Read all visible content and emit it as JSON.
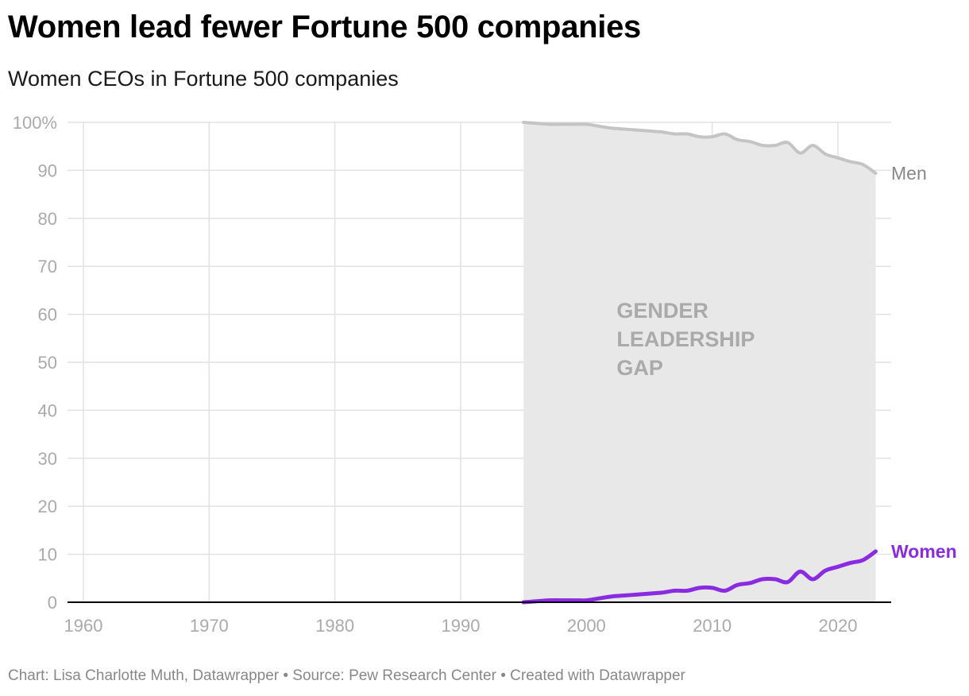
{
  "header": {
    "title": "Women lead fewer Fortune 500 companies",
    "subtitle": "Women CEOs in Fortune 500 companies"
  },
  "footer": {
    "credit": "Chart: Lisa Charlotte Muth, Datawrapper • Source: Pew Research Center • Created with Datawrapper"
  },
  "colors": {
    "women": "#8a2be2",
    "men": "#c4c4c4",
    "gap_fill": "#e8e8e8",
    "grid": "#e2e2e2",
    "axis": "#000000"
  },
  "chart_data": {
    "type": "line",
    "title": "Women lead fewer Fortune 500 companies",
    "subtitle": "Women CEOs in Fortune 500 companies",
    "xlabel": "",
    "ylabel": "",
    "xlim": [
      1958,
      2024.5
    ],
    "ylim": [
      0,
      100
    ],
    "x_ticks": [
      1960,
      1970,
      1980,
      1990,
      2000,
      2010,
      2020
    ],
    "y_ticks": [
      0,
      10,
      20,
      30,
      40,
      50,
      60,
      70,
      80,
      90,
      100
    ],
    "y_tick_labels": [
      "0",
      "10",
      "20",
      "30",
      "40",
      "50",
      "60",
      "70",
      "80",
      "90",
      "100%"
    ],
    "grid": true,
    "shaded_area_label": [
      "GENDER",
      "LEADERSHIP",
      "GAP"
    ],
    "x": [
      1995,
      1996,
      1997,
      1998,
      1999,
      2000,
      2001,
      2002,
      2003,
      2004,
      2005,
      2006,
      2007,
      2008,
      2009,
      2010,
      2011,
      2012,
      2013,
      2014,
      2015,
      2016,
      2017,
      2018,
      2019,
      2020,
      2021,
      2022,
      2023
    ],
    "series": [
      {
        "name": "Men",
        "values": [
          100,
          99.8,
          99.6,
          99.6,
          99.6,
          99.6,
          99.2,
          98.8,
          98.6,
          98.4,
          98.2,
          98.0,
          97.6,
          97.6,
          97.0,
          97.0,
          97.6,
          96.4,
          96.0,
          95.2,
          95.2,
          95.8,
          93.6,
          95.2,
          93.4,
          92.6,
          91.8,
          91.2,
          89.4
        ]
      },
      {
        "name": "Women",
        "values": [
          0,
          0.2,
          0.4,
          0.4,
          0.4,
          0.4,
          0.8,
          1.2,
          1.4,
          1.6,
          1.8,
          2.0,
          2.4,
          2.4,
          3.0,
          3.0,
          2.4,
          3.6,
          4.0,
          4.8,
          4.8,
          4.2,
          6.4,
          4.8,
          6.6,
          7.4,
          8.2,
          8.8,
          10.6
        ]
      }
    ]
  }
}
